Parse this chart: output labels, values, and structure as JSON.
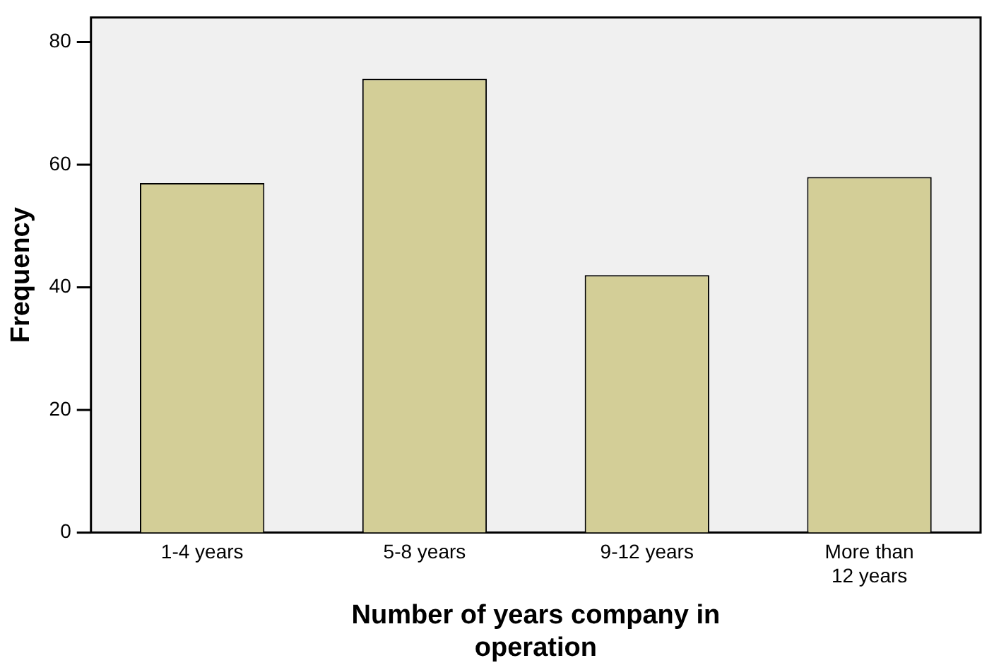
{
  "chart_data": {
    "type": "bar",
    "xlabel": "Number of years company in operation",
    "ylabel": "Frequency",
    "categories": [
      "1-4 years",
      "5-8 years",
      "9-12 years",
      "More than 12 years"
    ],
    "values": [
      57,
      74,
      42,
      58
    ],
    "color": "#d3ce97",
    "ylim": [
      0,
      84
    ],
    "yticks": [
      0,
      20,
      40,
      60,
      80
    ],
    "grid": false,
    "legend": false
  }
}
